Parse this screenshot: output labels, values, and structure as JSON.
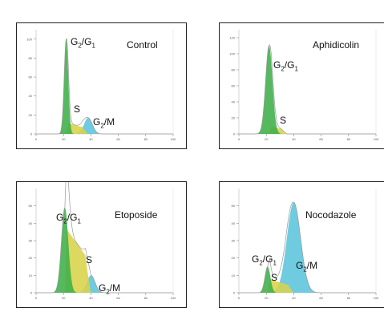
{
  "chart_data": [
    {
      "type": "area",
      "title": "Control",
      "peaks": [
        {
          "name": "G2/G1",
          "base": "G",
          "sub1": "2",
          "sep": "/G",
          "sub2": "1"
        },
        {
          "name": "S",
          "base": "S"
        },
        {
          "name": "G2/M",
          "base": "G",
          "sub1": "2",
          "sep": "/M"
        }
      ],
      "colors": {
        "g1": "#3fae49",
        "s": "#d8d34a",
        "g2m": "#5bc4dc",
        "outline": "#999999"
      },
      "xlim": [
        0,
        100
      ],
      "ylim": [
        0,
        110
      ],
      "xticks": [
        "0",
        "20",
        "40",
        "60",
        "80",
        "100"
      ],
      "yticks": [
        "0",
        "20",
        "40",
        "60",
        "80",
        "100"
      ],
      "series": [
        {
          "name": "G2/G1",
          "center": 22,
          "sigma": 1.5,
          "height": 100
        },
        {
          "name": "S",
          "from": 22,
          "to": 38,
          "height": 12
        },
        {
          "name": "G2/M",
          "center": 38,
          "sigma": 3,
          "height": 17
        }
      ]
    },
    {
      "type": "area",
      "title": "Aphidicolin",
      "peaks": [
        {
          "name": "G2/G1",
          "base": "G",
          "sub1": "2",
          "sep": "/G",
          "sub2": "1"
        },
        {
          "name": "S",
          "base": "S"
        }
      ],
      "colors": {
        "g1": "#3fae49",
        "s": "#d8d34a",
        "g2m": "#5bc4dc",
        "outline": "#999999"
      },
      "xlim": [
        0,
        100
      ],
      "ylim": [
        0,
        130
      ],
      "xticks": [
        "0",
        "20",
        "40",
        "60",
        "80",
        "100"
      ],
      "yticks": [
        "0",
        "20",
        "40",
        "60",
        "80",
        "100",
        "120"
      ],
      "series": [
        {
          "name": "G2/G1",
          "center": 22,
          "sigma": 2.5,
          "height": 110
        },
        {
          "name": "S",
          "from": 22,
          "to": 35,
          "height": 10
        }
      ]
    },
    {
      "type": "area",
      "title": "Etoposide",
      "peaks": [
        {
          "name": "G2/G1",
          "base": "G",
          "sub1": "2",
          "sep": "/G",
          "sub2": "1"
        },
        {
          "name": "S",
          "base": "S"
        },
        {
          "name": "G2/M",
          "base": "G",
          "sub1": "2",
          "sep": "/M"
        }
      ],
      "colors": {
        "g1": "#3fae49",
        "s": "#d8d34a",
        "g2m": "#5bc4dc",
        "outline": "#999999"
      },
      "xlim": [
        0,
        100
      ],
      "ylim": [
        0,
        60
      ],
      "xticks": [
        "0",
        "20",
        "40",
        "60",
        "80",
        "100"
      ],
      "yticks": [
        "0",
        "10",
        "20",
        "30",
        "40",
        "50"
      ],
      "series": [
        {
          "name": "G2/G1",
          "center": 21,
          "sigma": 2.5,
          "height": 49
        },
        {
          "name": "S",
          "from": 21,
          "to": 40,
          "height": 38
        },
        {
          "name": "G2/M",
          "center": 40,
          "sigma": 3,
          "height": 10
        }
      ]
    },
    {
      "type": "area",
      "title": "Nocodazole",
      "peaks": [
        {
          "name": "G2/G1",
          "base": "G",
          "sub1": "2",
          "sep": "/G",
          "sub2": "1"
        },
        {
          "name": "S",
          "base": "S"
        },
        {
          "name": "G2/M",
          "base": "G",
          "sub1": "2",
          "sep": "/M"
        }
      ],
      "colors": {
        "g1": "#3fae49",
        "s": "#d8d34a",
        "g2m": "#5bc4dc",
        "outline": "#999999"
      },
      "xlim": [
        0,
        100
      ],
      "ylim": [
        0,
        60
      ],
      "xticks": [
        "0",
        "20",
        "40",
        "60",
        "80",
        "100"
      ],
      "yticks": [
        "0",
        "10",
        "20",
        "30",
        "40",
        "50"
      ],
      "series": [
        {
          "name": "G2/G1",
          "center": 21,
          "sigma": 2,
          "height": 15
        },
        {
          "name": "S",
          "from": 21,
          "to": 40,
          "height": 8
        },
        {
          "name": "G2/M",
          "center": 40,
          "sigma": 5,
          "height": 52
        }
      ]
    }
  ]
}
